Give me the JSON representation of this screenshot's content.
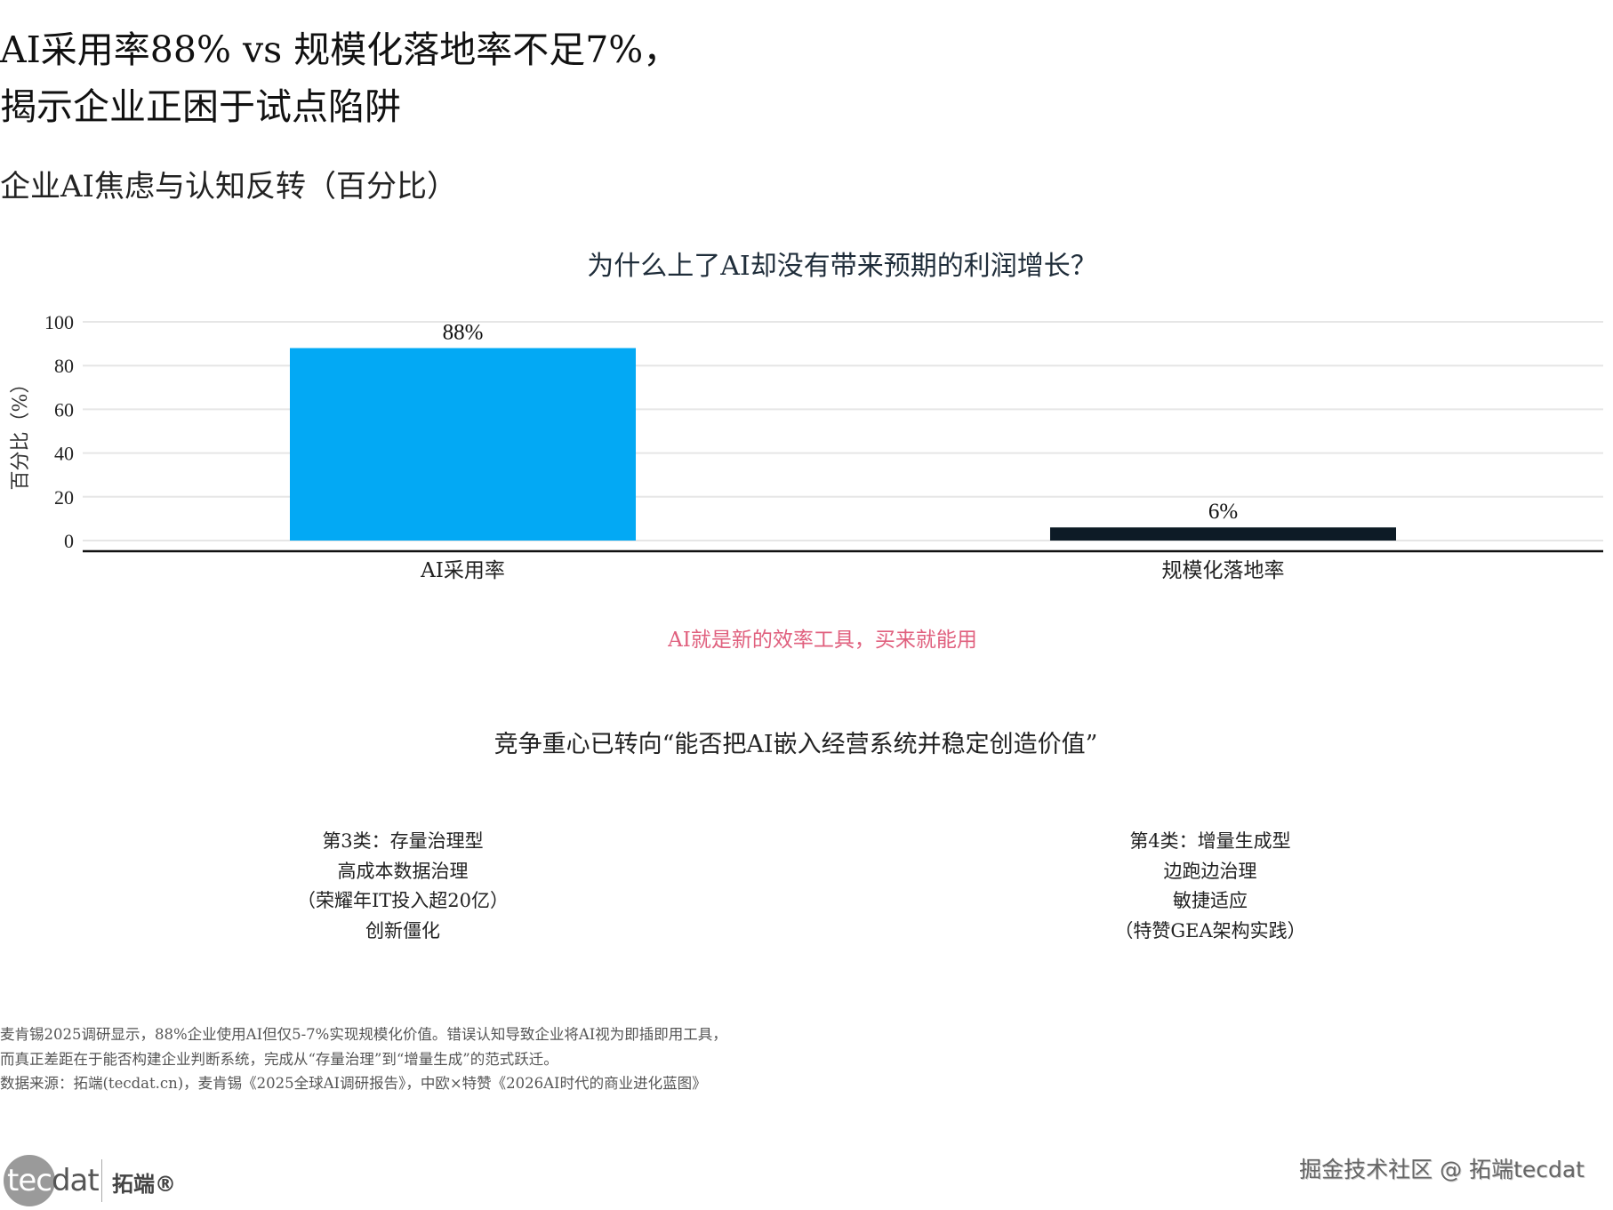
{
  "header": {
    "title_line1": "AI采用率88% vs 规模化落地率不足7%，",
    "title_line2": "揭示企业正困于试点陷阱",
    "subtitle": "企业AI焦虑与认知反转（百分比）"
  },
  "chart_data": {
    "type": "bar",
    "title": "为什么上了AI却没有带来预期的利润增长？",
    "ylabel": "百分比（%）",
    "xlabel": "",
    "categories": [
      "AI采用率",
      "规模化落地率"
    ],
    "values": [
      88,
      6
    ],
    "data_labels": [
      "88%",
      "6%"
    ],
    "colors": [
      "#03A9F4",
      "#0D1B26"
    ],
    "ylim": [
      0,
      100
    ],
    "yticks": [
      0,
      20,
      40,
      60,
      80,
      100
    ],
    "ytick_labels": [
      "0",
      "20",
      "40",
      "60",
      "80",
      "100"
    ],
    "grid": true,
    "legend": "none"
  },
  "annotations": {
    "myth": "AI就是新的效率工具，买来就能用",
    "myth_color": "#E0607E",
    "shift": "竞争重心已转向“能否把AI嵌入经营系统并稳定创造价值”"
  },
  "blocks": {
    "left": [
      "第3类：存量治理型",
      "高成本数据治理",
      "（荣耀年IT投入超20亿）",
      "创新僵化"
    ],
    "right": [
      "第4类：增量生成型",
      "边跑边治理",
      "敏捷适应",
      "（特赞GEA架构实践）"
    ]
  },
  "footer": {
    "line1": "麦肯锡2025调研显示，88%企业使用AI但仅5-7%实现规模化价值。错误认知导致企业将AI视为即插即用工具，",
    "line2": "而真正差距在于能否构建企业判断系统，完成从“存量治理”到“增量生成”的范式跃迁。",
    "source": "数据来源：拓端(tecdat.cn)，麦肯锡《2025全球AI调研报告》，中欧×特赞《2026AI时代的商业进化蓝图》"
  },
  "branding": {
    "logo_word": "tecdat",
    "logo_cn": "拓端®",
    "watermark": "掘金技术社区 @ 拓端tecdat"
  }
}
